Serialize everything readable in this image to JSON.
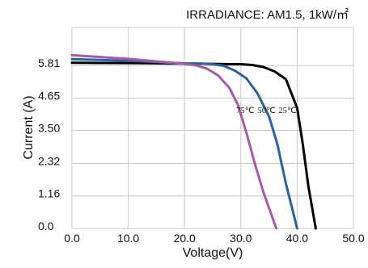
{
  "chart_data": {
    "type": "line",
    "title": "",
    "annotation": "IRRADIANCE:  AM1.5,  1kW/㎡",
    "xlabel": "Voltage(V)",
    "ylabel": "Current (A)",
    "xlim": [
      0,
      50
    ],
    "ylim": [
      0,
      7.17
    ],
    "x_ticks": [
      0,
      10,
      20,
      30,
      40,
      50
    ],
    "x_tick_labels": [
      "0.0",
      "10.0",
      "20.0",
      "30.0",
      "40.0",
      "50.0"
    ],
    "y_ticks": [
      0,
      1.16,
      2.32,
      3.5,
      4.65,
      5.81
    ],
    "y_tick_labels": [
      "0.0",
      "1.16",
      "2.32",
      "3.50",
      "4.65",
      "5.81"
    ],
    "grid": true,
    "legend": "none",
    "colors": {
      "grid": "#c8c8c8",
      "background": "#ffffff",
      "c25": "#000000",
      "c50": "#2e5fa0",
      "c75": "#a65aa8"
    },
    "series": [
      {
        "label": "25℃",
        "color_key": "c25",
        "x": [
          0,
          10,
          20,
          25,
          28,
          30,
          32,
          34,
          36,
          38,
          40,
          41,
          42,
          43.3
        ],
        "y": [
          5.91,
          5.9,
          5.88,
          5.87,
          5.86,
          5.86,
          5.83,
          5.76,
          5.6,
          5.32,
          4.3,
          3.0,
          1.5,
          0.0
        ]
      },
      {
        "label": "50℃",
        "color_key": "c50",
        "x": [
          0,
          10,
          20,
          23,
          25,
          27,
          29,
          31,
          33,
          35,
          36.5,
          38,
          40
        ],
        "y": [
          6.04,
          5.98,
          5.89,
          5.88,
          5.86,
          5.8,
          5.62,
          5.35,
          4.8,
          4.0,
          3.0,
          1.6,
          0.0
        ]
      },
      {
        "label": "75℃",
        "color_key": "c75",
        "x": [
          0,
          10,
          20,
          22,
          24,
          26,
          28,
          29.5,
          31,
          32.5,
          34,
          36.3
        ],
        "y": [
          6.18,
          6.05,
          5.87,
          5.82,
          5.7,
          5.45,
          5.0,
          4.4,
          3.4,
          2.3,
          1.3,
          0.0
        ]
      }
    ]
  }
}
